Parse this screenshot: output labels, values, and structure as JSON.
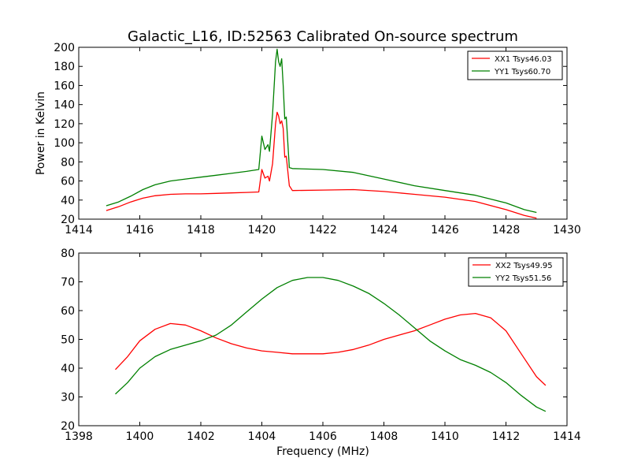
{
  "chart_data": [
    {
      "type": "line",
      "title": "Galactic_L16, ID:52563 Calibrated On-source spectrum",
      "xlabel": "",
      "ylabel": "Power in Kelvin",
      "xlim": [
        1414,
        1430
      ],
      "ylim": [
        20,
        200
      ],
      "xticks": [
        "1414",
        "1416",
        "1418",
        "1420",
        "1422",
        "1424",
        "1426",
        "1428",
        "1430"
      ],
      "yticks": [
        "20",
        "40",
        "60",
        "80",
        "100",
        "120",
        "140",
        "160",
        "180",
        "200"
      ],
      "legend_position": "top-right",
      "series": [
        {
          "name": "XX1 Tsys46.03",
          "color": "#ff0000",
          "points": [
            [
              1414.9,
              29
            ],
            [
              1415.3,
              33
            ],
            [
              1415.7,
              38
            ],
            [
              1416.1,
              42
            ],
            [
              1416.5,
              44.5
            ],
            [
              1417,
              46
            ],
            [
              1417.5,
              46.5
            ],
            [
              1418,
              46.5
            ],
            [
              1418.5,
              47
            ],
            [
              1419,
              47.5
            ],
            [
              1419.5,
              48
            ],
            [
              1419.9,
              48.5
            ],
            [
              1420.0,
              72
            ],
            [
              1420.1,
              63
            ],
            [
              1420.2,
              65
            ],
            [
              1420.25,
              60
            ],
            [
              1420.35,
              78
            ],
            [
              1420.45,
              120
            ],
            [
              1420.5,
              132
            ],
            [
              1420.55,
              128
            ],
            [
              1420.6,
              120
            ],
            [
              1420.65,
              123
            ],
            [
              1420.7,
              115
            ],
            [
              1420.75,
              85
            ],
            [
              1420.8,
              86
            ],
            [
              1420.9,
              55
            ],
            [
              1421,
              50
            ],
            [
              1422,
              50.5
            ],
            [
              1423,
              51
            ],
            [
              1424,
              49
            ],
            [
              1425,
              46
            ],
            [
              1426,
              43
            ],
            [
              1427,
              38.5
            ],
            [
              1428,
              30
            ],
            [
              1428.6,
              24
            ],
            [
              1429,
              21
            ]
          ]
        },
        {
          "name": "YY1 Tsys60.70",
          "color": "#008000",
          "points": [
            [
              1414.9,
              34
            ],
            [
              1415.3,
              38
            ],
            [
              1415.7,
              44
            ],
            [
              1416.1,
              51
            ],
            [
              1416.5,
              56
            ],
            [
              1417,
              60
            ],
            [
              1417.5,
              62
            ],
            [
              1418,
              64
            ],
            [
              1418.5,
              66
            ],
            [
              1419,
              68
            ],
            [
              1419.5,
              70
            ],
            [
              1419.9,
              72
            ],
            [
              1420.0,
              107
            ],
            [
              1420.1,
              93
            ],
            [
              1420.2,
              98
            ],
            [
              1420.25,
              91
            ],
            [
              1420.35,
              130
            ],
            [
              1420.45,
              185
            ],
            [
              1420.5,
              198
            ],
            [
              1420.55,
              185
            ],
            [
              1420.6,
              180
            ],
            [
              1420.65,
              188
            ],
            [
              1420.7,
              160
            ],
            [
              1420.75,
              125
            ],
            [
              1420.8,
              127
            ],
            [
              1420.9,
              74
            ],
            [
              1421,
              73
            ],
            [
              1422,
              72
            ],
            [
              1423,
              69
            ],
            [
              1424,
              62
            ],
            [
              1425,
              55
            ],
            [
              1426,
              50
            ],
            [
              1427,
              45
            ],
            [
              1428,
              37
            ],
            [
              1428.6,
              30
            ],
            [
              1429,
              27
            ]
          ]
        }
      ]
    },
    {
      "type": "line",
      "title": "",
      "xlabel": "Frequency (MHz)",
      "ylabel": "",
      "xlim": [
        1398,
        1414
      ],
      "ylim": [
        20,
        80
      ],
      "xticks": [
        "1398",
        "1400",
        "1402",
        "1404",
        "1406",
        "1408",
        "1410",
        "1412",
        "1414"
      ],
      "yticks": [
        "20",
        "30",
        "40",
        "50",
        "60",
        "70",
        "80"
      ],
      "legend_position": "top-right",
      "series": [
        {
          "name": "XX2 Tsys49.95",
          "color": "#ff0000",
          "points": [
            [
              1399.2,
              39.5
            ],
            [
              1399.6,
              44
            ],
            [
              1400,
              49.5
            ],
            [
              1400.5,
              53.5
            ],
            [
              1401,
              55.5
            ],
            [
              1401.5,
              55
            ],
            [
              1402,
              53
            ],
            [
              1402.5,
              50.5
            ],
            [
              1403,
              48.5
            ],
            [
              1403.5,
              47
            ],
            [
              1404,
              46
            ],
            [
              1404.5,
              45.5
            ],
            [
              1405,
              45
            ],
            [
              1405.5,
              45
            ],
            [
              1406,
              45
            ],
            [
              1406.5,
              45.5
            ],
            [
              1407,
              46.5
            ],
            [
              1407.5,
              48
            ],
            [
              1408,
              50
            ],
            [
              1408.5,
              51.5
            ],
            [
              1409,
              53
            ],
            [
              1409.5,
              55
            ],
            [
              1410,
              57
            ],
            [
              1410.5,
              58.5
            ],
            [
              1411,
              59
            ],
            [
              1411.5,
              57.5
            ],
            [
              1412,
              53
            ],
            [
              1412.5,
              45
            ],
            [
              1413,
              37
            ],
            [
              1413.3,
              34
            ]
          ]
        },
        {
          "name": "YY2 Tsys51.56",
          "color": "#008000",
          "points": [
            [
              1399.2,
              31
            ],
            [
              1399.6,
              35
            ],
            [
              1400,
              40
            ],
            [
              1400.5,
              44
            ],
            [
              1401,
              46.5
            ],
            [
              1401.5,
              48
            ],
            [
              1402,
              49.5
            ],
            [
              1402.5,
              51.5
            ],
            [
              1403,
              55
            ],
            [
              1403.5,
              59.5
            ],
            [
              1404,
              64
            ],
            [
              1404.5,
              68
            ],
            [
              1405,
              70.5
            ],
            [
              1405.5,
              71.5
            ],
            [
              1406,
              71.5
            ],
            [
              1406.5,
              70.5
            ],
            [
              1407,
              68.5
            ],
            [
              1407.5,
              66
            ],
            [
              1408,
              62.5
            ],
            [
              1408.5,
              58.5
            ],
            [
              1409,
              54
            ],
            [
              1409.5,
              49.5
            ],
            [
              1410,
              46
            ],
            [
              1410.5,
              43
            ],
            [
              1411,
              41
            ],
            [
              1411.5,
              38.5
            ],
            [
              1412,
              35
            ],
            [
              1412.5,
              30.5
            ],
            [
              1413,
              26.5
            ],
            [
              1413.3,
              25
            ]
          ]
        }
      ]
    }
  ]
}
